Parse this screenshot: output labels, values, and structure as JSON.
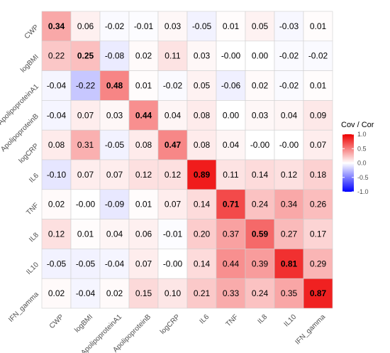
{
  "chart_data": {
    "type": "heatmap",
    "title": "",
    "xlabel": "",
    "ylabel": "",
    "variables": [
      "CWP",
      "logBMI",
      "ApolipoproteinA1",
      "ApolipoproteinB",
      "logCRP",
      "IL6",
      "TNF",
      "IL8",
      "IL10",
      "IFN_gamma"
    ],
    "values": [
      [
        0.34,
        0.06,
        -0.02,
        -0.01,
        0.03,
        -0.05,
        0.01,
        0.05,
        -0.03,
        0.01
      ],
      [
        0.22,
        0.25,
        -0.08,
        0.02,
        0.11,
        0.03,
        -0.0,
        0.0,
        -0.02,
        -0.02
      ],
      [
        -0.04,
        -0.22,
        0.48,
        0.01,
        -0.02,
        0.05,
        -0.06,
        0.02,
        -0.02,
        0.01
      ],
      [
        -0.04,
        0.07,
        0.03,
        0.44,
        0.04,
        0.08,
        0.0,
        0.03,
        0.04,
        0.09
      ],
      [
        0.08,
        0.31,
        -0.05,
        0.08,
        0.47,
        0.08,
        0.04,
        -0.0,
        -0.0,
        0.07
      ],
      [
        -0.1,
        0.07,
        0.07,
        0.12,
        0.12,
        0.89,
        0.11,
        0.14,
        0.12,
        0.18
      ],
      [
        0.02,
        -0.0,
        -0.09,
        0.01,
        0.07,
        0.14,
        0.71,
        0.24,
        0.34,
        0.26
      ],
      [
        0.12,
        0.01,
        0.04,
        0.06,
        -0.01,
        0.2,
        0.37,
        0.59,
        0.27,
        0.17
      ],
      [
        -0.05,
        -0.05,
        -0.04,
        0.07,
        -0.0,
        0.14,
        0.44,
        0.39,
        0.81,
        0.29
      ],
      [
        0.02,
        -0.04,
        0.02,
        0.15,
        0.1,
        0.21,
        0.33,
        0.24,
        0.35,
        0.87
      ]
    ],
    "labels": [
      [
        "0.34",
        "0.06",
        "-0.02",
        "-0.01",
        "0.03",
        "-0.05",
        "0.01",
        "0.05",
        "-0.03",
        "0.01"
      ],
      [
        "0.22",
        "0.25",
        "-0.08",
        "0.02",
        "0.11",
        "0.03",
        "-0.00",
        "0.00",
        "-0.02",
        "-0.02"
      ],
      [
        "-0.04",
        "-0.22",
        "0.48",
        "0.01",
        "-0.02",
        "0.05",
        "-0.06",
        "0.02",
        "-0.02",
        "0.01"
      ],
      [
        "-0.04",
        "0.07",
        "0.03",
        "0.44",
        "0.04",
        "0.08",
        "0.00",
        "0.03",
        "0.04",
        "0.09"
      ],
      [
        "0.08",
        "0.31",
        "-0.05",
        "0.08",
        "0.47",
        "0.08",
        "0.04",
        "-0.00",
        "-0.00",
        "0.07"
      ],
      [
        "-0.10",
        "0.07",
        "0.07",
        "0.12",
        "0.12",
        "0.89",
        "0.11",
        "0.14",
        "0.12",
        "0.18"
      ],
      [
        "0.02",
        "-0.00",
        "-0.09",
        "0.01",
        "0.07",
        "0.14",
        "0.71",
        "0.24",
        "0.34",
        "0.26"
      ],
      [
        "0.12",
        "0.01",
        "0.04",
        "0.06",
        "-0.01",
        "0.20",
        "0.37",
        "0.59",
        "0.27",
        "0.17"
      ],
      [
        "-0.05",
        "-0.05",
        "-0.04",
        "0.07",
        "-0.00",
        "0.14",
        "0.44",
        "0.39",
        "0.81",
        "0.29"
      ],
      [
        "0.02",
        "-0.04",
        "0.02",
        "0.15",
        "0.10",
        "0.21",
        "0.33",
        "0.24",
        "0.35",
        "0.87"
      ]
    ],
    "legend": {
      "title": "Cov / Cor",
      "ticks": [
        {
          "value": 1.0,
          "label": "1.0"
        },
        {
          "value": 0.5,
          "label": "0.5"
        },
        {
          "value": 0.0,
          "label": "0.0"
        },
        {
          "value": -0.5,
          "label": "-0.5"
        },
        {
          "value": -1.0,
          "label": "-1.0"
        }
      ],
      "placement": "right"
    },
    "color_scale": {
      "low": "#0000ff",
      "mid": "#ffffff",
      "high": "#ee0000",
      "range": [
        -1,
        1
      ]
    },
    "grid": true
  }
}
